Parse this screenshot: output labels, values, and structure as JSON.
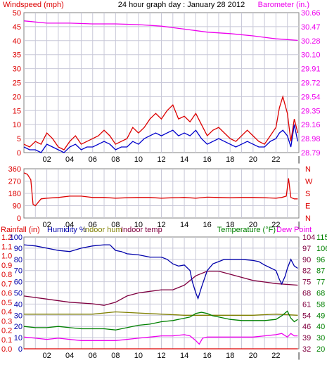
{
  "header": {
    "left": "Windspeed (mph)",
    "title": "24 hour graph day : January 28 2012",
    "right": "Barometer (in.)"
  },
  "colors": {
    "wind_speed": "#0000cc",
    "wind_gust": "#dd0000",
    "barometer": "#ee00ee",
    "wind_dir": "#dd0000",
    "humidity": "#0000aa",
    "indoor_hum": "#808000",
    "indoor_temp": "#800040",
    "temperature": "#008000",
    "dew_point": "#ee00ee",
    "rainfall": "#dd0000",
    "grid": "#c8c8d8"
  },
  "panel3_labels": {
    "rainfall": "Rainfall (in)",
    "humidity": "Humidity %",
    "indoor_hum": "Indoor hum",
    "indoor_temp": "Indoor temp",
    "temperature": "Temperature (°F)",
    "dew_point": "Dew Point"
  },
  "chart_data": [
    {
      "type": "line",
      "x_ticks": [
        "02",
        "04",
        "06",
        "08",
        "10",
        "12",
        "14",
        "16",
        "18",
        "20",
        "22",
        "|"
      ],
      "xlim": [
        0,
        24
      ],
      "left_axis": {
        "ticks": [
          "0",
          "5",
          "10",
          "15",
          "20",
          "25",
          "30",
          "35",
          "40",
          "45",
          "50"
        ],
        "ylim": [
          0,
          50
        ]
      },
      "right_axis": {
        "ticks": [
          "28.79",
          "28.98",
          "29.16",
          "29.35",
          "29.54",
          "29.72",
          "29.91",
          "30.10",
          "30.28",
          "30.47",
          "30.66"
        ],
        "ylim": [
          28.79,
          30.66
        ]
      },
      "series": [
        {
          "name": "Windspeed",
          "axis": "left",
          "x": [
            0,
            0.5,
            1,
            1.5,
            2,
            2.5,
            3,
            3.5,
            4,
            4.5,
            5,
            5.5,
            6,
            6.5,
            7,
            7.5,
            8,
            8.5,
            9,
            9.5,
            10,
            10.5,
            11,
            11.5,
            12,
            12.5,
            13,
            13.5,
            14,
            14.5,
            15,
            15.5,
            16,
            16.5,
            17,
            17.5,
            18,
            18.5,
            19,
            19.5,
            20,
            20.5,
            21,
            21.5,
            22,
            22.3,
            22.6,
            23,
            23.3,
            23.6,
            23.9
          ],
          "y": [
            2,
            1,
            1,
            0,
            3,
            2,
            1,
            0,
            2,
            3,
            1,
            2,
            2,
            3,
            4,
            3,
            1,
            2,
            2,
            4,
            3,
            5,
            6,
            7,
            6,
            7,
            8,
            6,
            7,
            6,
            8,
            5,
            3,
            4,
            5,
            4,
            3,
            2,
            3,
            4,
            3,
            2,
            2,
            4,
            5,
            7,
            8,
            6,
            2,
            10,
            4
          ]
        },
        {
          "name": "Gust",
          "axis": "left",
          "x": [
            0,
            0.5,
            1,
            1.5,
            2,
            2.5,
            3,
            3.5,
            4,
            4.5,
            5,
            5.5,
            6,
            6.5,
            7,
            7.5,
            8,
            8.5,
            9,
            9.5,
            10,
            10.5,
            11,
            11.5,
            12,
            12.5,
            13,
            13.5,
            14,
            14.5,
            15,
            15.5,
            16,
            16.5,
            17,
            17.5,
            18,
            18.5,
            19,
            19.5,
            20,
            20.5,
            21,
            21.5,
            22,
            22.3,
            22.6,
            23,
            23.3,
            23.6,
            23.9
          ],
          "y": [
            3,
            2,
            4,
            3,
            7,
            5,
            2,
            1,
            4,
            6,
            3,
            4,
            5,
            6,
            8,
            6,
            3,
            4,
            5,
            9,
            7,
            9,
            12,
            14,
            12,
            15,
            17,
            12,
            13,
            11,
            14,
            10,
            6,
            8,
            9,
            7,
            5,
            4,
            6,
            8,
            6,
            4,
            3,
            6,
            9,
            16,
            20,
            14,
            4,
            12,
            7
          ]
        },
        {
          "name": "Barometer",
          "axis": "right",
          "x": [
            0,
            2,
            4,
            6,
            8,
            10,
            12,
            14,
            16,
            18,
            20,
            22,
            23,
            23.9
          ],
          "y": [
            30.55,
            30.52,
            30.52,
            30.51,
            30.51,
            30.5,
            30.48,
            30.44,
            30.4,
            30.38,
            30.35,
            30.31,
            30.3,
            30.29
          ]
        }
      ]
    },
    {
      "type": "line",
      "x_ticks": [
        "02",
        "04",
        "06",
        "08",
        "10",
        "12",
        "14",
        "16",
        "18",
        "20",
        "22",
        "|"
      ],
      "xlim": [
        0,
        24
      ],
      "left_axis": {
        "ticks": [
          "0",
          "90",
          "180",
          "270",
          "360"
        ],
        "ylim": [
          0,
          360
        ]
      },
      "right_axis": {
        "ticks": [
          "N",
          "E",
          "S",
          "W",
          "N"
        ]
      },
      "series": [
        {
          "name": "Wind direction",
          "axis": "left",
          "x": [
            0,
            0.3,
            0.6,
            0.8,
            1,
            1.5,
            2,
            3,
            4,
            5,
            6,
            7,
            8,
            9,
            10,
            11,
            12,
            13,
            14,
            15,
            16,
            17,
            18,
            19,
            20,
            21,
            22,
            22.5,
            22.9,
            23.1,
            23.3,
            23.6,
            23.9
          ],
          "y": [
            330,
            320,
            280,
            100,
            90,
            140,
            145,
            150,
            160,
            160,
            150,
            150,
            145,
            148,
            150,
            150,
            145,
            148,
            150,
            145,
            152,
            150,
            148,
            150,
            150,
            148,
            145,
            150,
            160,
            290,
            150,
            140,
            140
          ]
        }
      ]
    },
    {
      "type": "line",
      "x_ticks": [
        "02",
        "04",
        "06",
        "08",
        "10",
        "12",
        "14",
        "16",
        "18",
        "20",
        "22",
        "|"
      ],
      "xlim": [
        0,
        24
      ],
      "rain_axis": {
        "ticks": [
          "0.0",
          "0.1",
          "0.2",
          "0.3",
          "0.4",
          "0.5",
          "0.6",
          "0.7",
          "0.8",
          "0.9",
          "1.0",
          "1.1",
          "1.2"
        ],
        "ylim": [
          0,
          1.2
        ]
      },
      "humidity_axis": {
        "ticks": [
          "0",
          "10",
          "20",
          "30",
          "40",
          "50",
          "60",
          "70",
          "80",
          "90",
          "100"
        ],
        "ylim": [
          0,
          100
        ]
      },
      "indoor_axis": {
        "ticks": [
          "32",
          "39",
          "46",
          "54",
          "61",
          "68",
          "75",
          "82",
          "90",
          "97",
          "104"
        ]
      },
      "temp_axis": {
        "ticks": [
          "20",
          "30",
          "40",
          "49",
          "58",
          "68",
          "77",
          "87",
          "96",
          "106",
          "115"
        ],
        "ylim": [
          20,
          115
        ]
      },
      "series": [
        {
          "name": "Humidity %",
          "axis": "humidity",
          "x": [
            0,
            1,
            2,
            3,
            4,
            5,
            6,
            7,
            7.5,
            8,
            8.5,
            9,
            10,
            11,
            12,
            12.5,
            13,
            13.5,
            14,
            14.5,
            14.7,
            15,
            15.2,
            15.5,
            16,
            16.5,
            17,
            17.5,
            18,
            19,
            20,
            20.5,
            21,
            22,
            22.3,
            22.5,
            22.8,
            23,
            23.3,
            23.6,
            23.9
          ],
          "y": [
            93,
            92,
            90,
            88,
            87,
            90,
            92,
            93,
            93,
            88,
            87,
            85,
            84,
            82,
            82,
            80,
            76,
            74,
            75,
            70,
            60,
            50,
            45,
            55,
            70,
            76,
            78,
            80,
            80,
            80,
            79,
            78,
            75,
            70,
            62,
            58,
            65,
            72,
            80,
            74,
            72
          ]
        },
        {
          "name": "Indoor hum",
          "axis": "humidity",
          "x": [
            0,
            2,
            4,
            6,
            8,
            10,
            12,
            14,
            16,
            18,
            20,
            22,
            23.9
          ],
          "y": [
            31,
            31,
            31,
            31,
            33,
            32,
            31,
            30,
            30,
            30,
            30,
            31,
            30
          ]
        },
        {
          "name": "Indoor temp",
          "axis": "indoor",
          "x": [
            0,
            2,
            4,
            6,
            7,
            8,
            9,
            10,
            11,
            12,
            13,
            14,
            15,
            16,
            17,
            18,
            19,
            20,
            21,
            22,
            23.9
          ],
          "y": [
            66,
            64,
            62,
            61,
            60,
            62,
            66,
            68,
            69,
            70,
            70,
            73,
            79,
            82,
            82,
            80,
            78,
            76,
            75,
            74,
            73
          ]
        },
        {
          "name": "Temperature (°F)",
          "axis": "temp",
          "x": [
            0,
            1,
            2,
            3,
            4,
            5,
            6,
            7,
            8,
            9,
            10,
            11,
            12,
            13,
            14,
            14.5,
            15,
            15.5,
            16,
            16.5,
            17,
            18,
            19,
            20,
            21,
            22,
            22.5,
            23,
            23.3,
            23.6,
            23.9
          ],
          "y": [
            39,
            38,
            38,
            39,
            38,
            37,
            37,
            37,
            36,
            38,
            40,
            41,
            43,
            44,
            46,
            47,
            50,
            51,
            50,
            48,
            47,
            45,
            44,
            44,
            44,
            45,
            48,
            52,
            46,
            43,
            45
          ]
        },
        {
          "name": "Dew Point",
          "axis": "temp",
          "x": [
            0,
            1,
            2,
            3,
            4,
            5,
            6,
            7,
            8,
            9,
            10,
            11,
            12,
            13,
            14,
            14.5,
            15,
            15.3,
            15.6,
            16,
            17,
            18,
            19,
            20,
            21,
            22,
            22.5,
            23,
            23.3,
            23.6,
            23.9
          ],
          "y": [
            30,
            29,
            28,
            29,
            28,
            27,
            27,
            27,
            27,
            28,
            29,
            30,
            31,
            31,
            32,
            31,
            27,
            24,
            29,
            30,
            30,
            30,
            30,
            30,
            31,
            32,
            33,
            30,
            33,
            31,
            31
          ]
        },
        {
          "name": "Rainfall",
          "axis": "rain",
          "x": [
            0,
            23.9
          ],
          "y": [
            0,
            0
          ]
        }
      ]
    }
  ]
}
